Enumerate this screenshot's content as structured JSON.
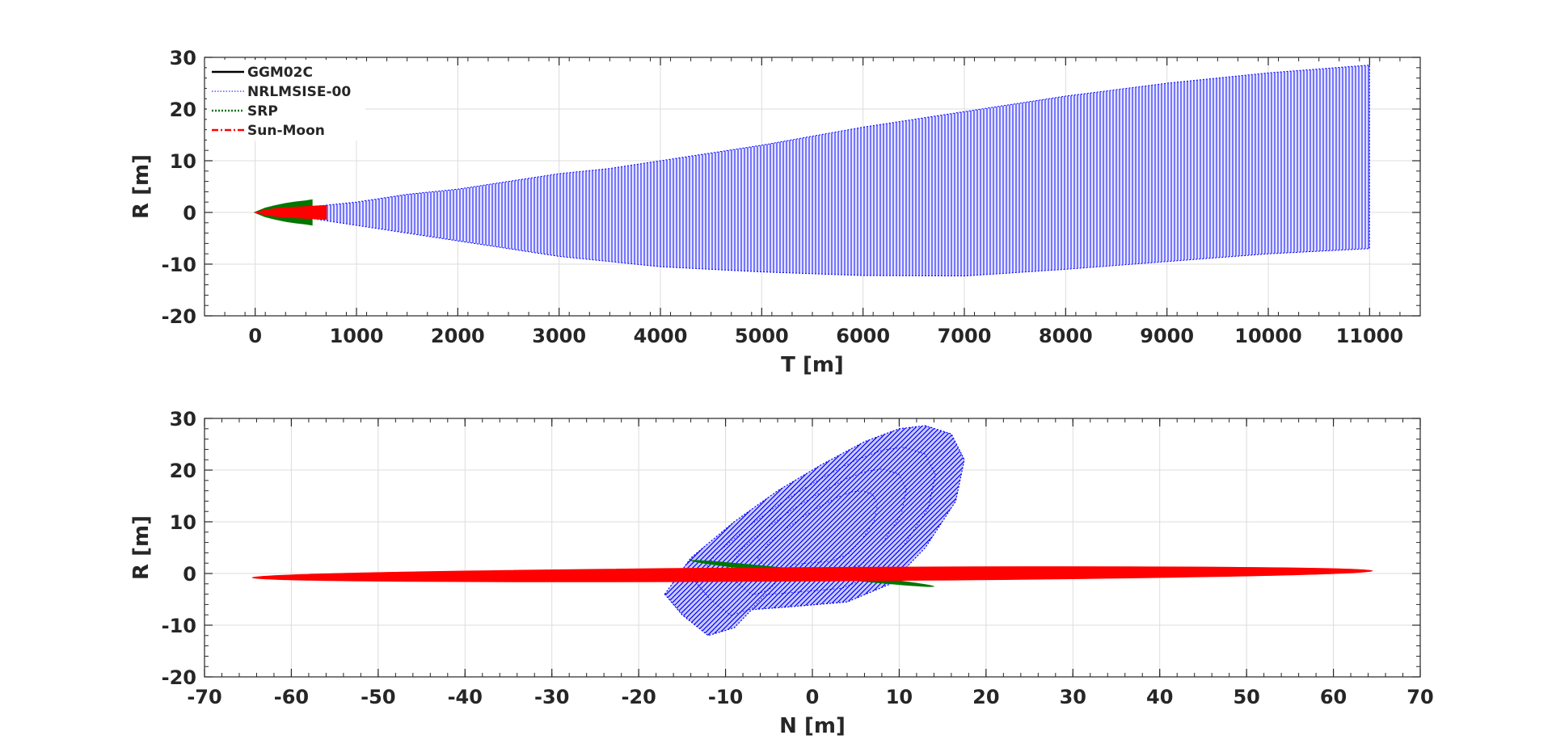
{
  "chart_data": [
    {
      "type": "line",
      "xlabel": "T [m]",
      "ylabel": "R [m]",
      "xlim": [
        -500,
        11500
      ],
      "ylim": [
        -20,
        30
      ],
      "xticks": [
        0,
        1000,
        2000,
        3000,
        4000,
        5000,
        6000,
        7000,
        8000,
        9000,
        10000,
        11000
      ],
      "yticks": [
        -20,
        -10,
        0,
        10,
        20,
        30
      ],
      "grid": true,
      "legend_position": "top-left",
      "legend": [
        {
          "label": "GGM02C",
          "color": "#000000",
          "style": "solid"
        },
        {
          "label": "NRLMSISE-00",
          "color": "#0000ff",
          "style": "dotted"
        },
        {
          "label": "SRP",
          "color": "#007700",
          "style": "dotted"
        },
        {
          "label": "Sun-Moon",
          "color": "#ff0000",
          "style": "dashdot"
        }
      ],
      "series": [
        {
          "name": "NRLMSISE-00",
          "color": "#0000ff",
          "x": [
            0,
            500,
            1000,
            1500,
            2000,
            2500,
            3000,
            3500,
            4000,
            5000,
            6000,
            7000,
            8000,
            9000,
            10000,
            11000
          ],
          "ymax": [
            0,
            1,
            2,
            3.5,
            4.5,
            6,
            7.5,
            8.5,
            10,
            13,
            16.5,
            19.5,
            22.5,
            25,
            27,
            28.5
          ],
          "ymin": [
            0,
            -1,
            -2.5,
            -4,
            -5.5,
            -7,
            -8.5,
            -9.5,
            -10.5,
            -11.5,
            -12.2,
            -12.3,
            -11,
            -9.5,
            -8,
            -7
          ]
        },
        {
          "name": "SRP",
          "color": "#007700",
          "x": [
            0,
            100,
            200,
            300,
            400,
            500,
            560
          ],
          "ymax": [
            0,
            0.8,
            1.3,
            1.7,
            2.0,
            2.2,
            2.4
          ],
          "ymin": [
            0,
            -0.8,
            -1.3,
            -1.7,
            -2.0,
            -2.2,
            -2.4
          ]
        },
        {
          "name": "Sun-Moon",
          "color": "#ff0000",
          "x": [
            0,
            100,
            200,
            300,
            400,
            500,
            600,
            700
          ],
          "ymax": [
            0,
            0.4,
            0.7,
            0.9,
            1.0,
            1.1,
            1.2,
            1.3
          ],
          "ymin": [
            0,
            -0.4,
            -0.7,
            -0.9,
            -1.0,
            -1.1,
            -1.2,
            -1.3
          ]
        }
      ]
    },
    {
      "type": "line",
      "xlabel": "N [m]",
      "ylabel": "R [m]",
      "xlim": [
        -70,
        70
      ],
      "ylim": [
        -20,
        30
      ],
      "xticks": [
        -70,
        -60,
        -50,
        -40,
        -30,
        -20,
        -10,
        0,
        10,
        20,
        30,
        40,
        50,
        60,
        70
      ],
      "yticks": [
        -20,
        -10,
        0,
        10,
        20,
        30
      ],
      "grid": true,
      "series": [
        {
          "name": "NRLMSISE-00",
          "color": "#0000ff",
          "loop": [
            [
              -17,
              -4
            ],
            [
              -14,
              3
            ],
            [
              -9,
              10
            ],
            [
              -4,
              16
            ],
            [
              1,
              21
            ],
            [
              6,
              25.5
            ],
            [
              10,
              28
            ],
            [
              13,
              28.6
            ],
            [
              16,
              27
            ],
            [
              17.5,
              22
            ],
            [
              16.5,
              14
            ],
            [
              13,
              5
            ],
            [
              9,
              -2
            ],
            [
              4,
              -5.5
            ],
            [
              -3,
              -6.5
            ],
            [
              -7,
              -7
            ],
            [
              -9,
              -10.5
            ],
            [
              -12,
              -12
            ],
            [
              -15,
              -8
            ]
          ]
        },
        {
          "name": "SRP",
          "color": "#007700",
          "ellipse": {
            "start": [
              -14,
              2.5
            ],
            "end": [
              14,
              -2.5
            ],
            "halfwidth": 0.5
          }
        },
        {
          "name": "Sun-Moon",
          "color": "#ff0000",
          "ellipse": {
            "start": [
              -64.5,
              -0.8
            ],
            "end": [
              64.5,
              0.5
            ],
            "halfwidth": 1.3
          }
        }
      ]
    }
  ]
}
